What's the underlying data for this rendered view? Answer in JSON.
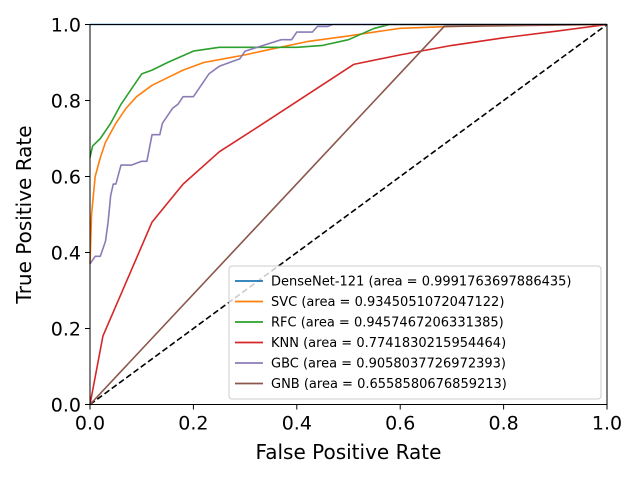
{
  "chart_data": {
    "type": "line",
    "title": "",
    "xlabel": "False Positive Rate",
    "ylabel": "True Positive Rate",
    "xlim": [
      0.0,
      1.0
    ],
    "ylim": [
      0.0,
      1.0
    ],
    "xticks": [
      "0.0",
      "0.2",
      "0.4",
      "0.6",
      "0.8",
      "1.0"
    ],
    "yticks": [
      "0.0",
      "0.2",
      "0.4",
      "0.6",
      "0.8",
      "1.0"
    ],
    "grid": false,
    "legend_position": "lower-right",
    "diagonal": {
      "style": "dashed",
      "color": "#000000",
      "x": [
        0,
        1
      ],
      "y": [
        0,
        1
      ]
    },
    "series": [
      {
        "name": "DenseNet-121 (area = 0.9991763697886435)",
        "color": "#1f77b4",
        "x": [
          0.0,
          1.0
        ],
        "y": [
          1.0,
          1.0
        ]
      },
      {
        "name": "SVC (area = 0.9345051072047122)",
        "color": "#ff7f0e",
        "x": [
          0.0,
          0.003,
          0.01,
          0.02,
          0.03,
          0.05,
          0.07,
          0.09,
          0.12,
          0.15,
          0.18,
          0.22,
          0.26,
          0.3,
          0.35,
          0.42,
          0.5,
          0.6,
          0.7,
          0.8,
          0.9,
          1.0
        ],
        "y": [
          0.37,
          0.5,
          0.6,
          0.65,
          0.69,
          0.74,
          0.78,
          0.81,
          0.84,
          0.86,
          0.88,
          0.9,
          0.91,
          0.92,
          0.935,
          0.955,
          0.97,
          0.99,
          0.995,
          0.998,
          0.999,
          1.0
        ]
      },
      {
        "name": "RFC (area = 0.9457467206331385)",
        "color": "#2ca02c",
        "x": [
          0.0,
          0.005,
          0.02,
          0.04,
          0.06,
          0.08,
          0.1,
          0.12,
          0.15,
          0.2,
          0.25,
          0.3,
          0.35,
          0.4,
          0.45,
          0.5,
          0.55,
          0.58,
          0.6,
          1.0
        ],
        "y": [
          0.65,
          0.68,
          0.7,
          0.74,
          0.79,
          0.83,
          0.87,
          0.88,
          0.9,
          0.93,
          0.94,
          0.94,
          0.94,
          0.94,
          0.945,
          0.96,
          0.99,
          1.0,
          1.0,
          1.0
        ]
      },
      {
        "name": "KNN (area = 0.7741830215954464)",
        "color": "#d62728",
        "x": [
          0.0,
          0.025,
          0.12,
          0.18,
          0.25,
          0.33,
          0.51,
          0.6,
          0.7,
          0.8,
          0.9,
          1.0
        ],
        "y": [
          0.0,
          0.18,
          0.48,
          0.58,
          0.665,
          0.735,
          0.895,
          0.92,
          0.945,
          0.965,
          0.982,
          1.0
        ]
      },
      {
        "name": "GBC (area = 0.9058037726972393)",
        "color": "#8c7bb5",
        "x": [
          0.0,
          0.005,
          0.01,
          0.02,
          0.03,
          0.035,
          0.04,
          0.045,
          0.05,
          0.06,
          0.08,
          0.1,
          0.11,
          0.12,
          0.135,
          0.14,
          0.15,
          0.16,
          0.17,
          0.18,
          0.2,
          0.23,
          0.25,
          0.27,
          0.29,
          0.3,
          0.37,
          0.39,
          0.4,
          0.43,
          0.44,
          0.46,
          0.47,
          1.0
        ],
        "y": [
          0.37,
          0.38,
          0.39,
          0.39,
          0.43,
          0.48,
          0.55,
          0.58,
          0.58,
          0.63,
          0.63,
          0.64,
          0.64,
          0.71,
          0.71,
          0.74,
          0.76,
          0.78,
          0.79,
          0.81,
          0.81,
          0.87,
          0.89,
          0.9,
          0.91,
          0.93,
          0.96,
          0.96,
          0.98,
          0.98,
          0.995,
          0.995,
          1.0,
          1.0
        ]
      },
      {
        "name": "GNB (area = 0.6558580676859213)",
        "color": "#8c564b",
        "x": [
          0.0,
          0.685,
          1.0
        ],
        "y": [
          0.0,
          0.995,
          1.0
        ]
      }
    ]
  }
}
